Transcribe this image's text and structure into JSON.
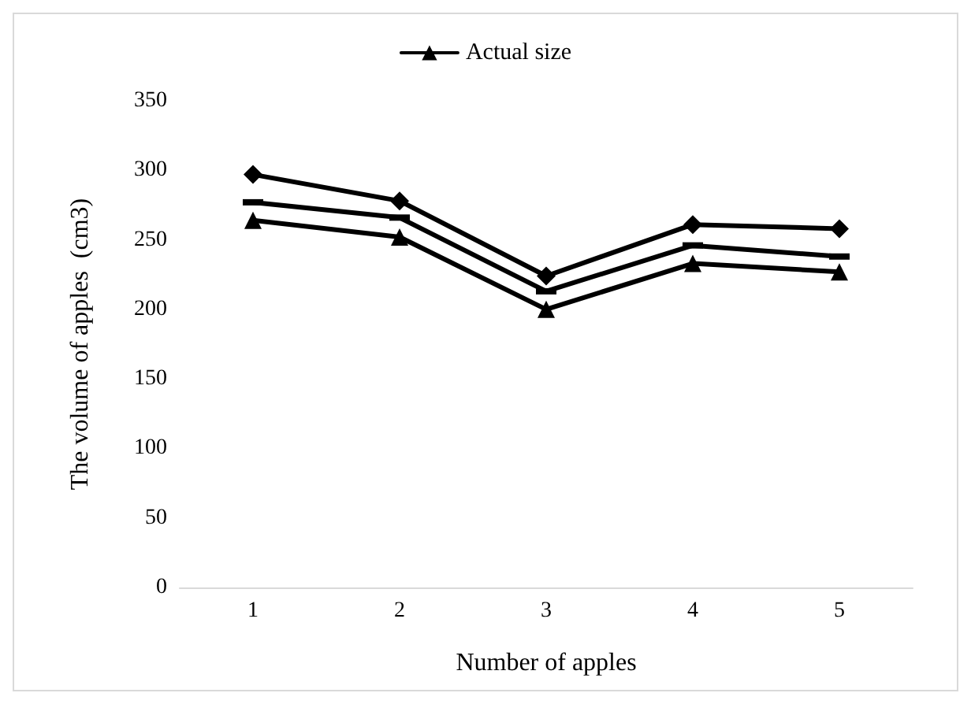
{
  "chart_data": {
    "type": "line",
    "xlabel": "Number of apples",
    "ylabel": "The volume of apples  (cm3)",
    "categories": [
      "1",
      "2",
      "3",
      "4",
      "5"
    ],
    "series": [
      {
        "color": "#000000",
        "marker": "diamond",
        "values": [
          297,
          278,
          224,
          261,
          258
        ]
      },
      {
        "color": "#000000",
        "marker": "square",
        "values": [
          277,
          266,
          213,
          246,
          238
        ]
      },
      {
        "name": "Actual size",
        "color": "#000000",
        "marker": "triangle",
        "values": [
          264,
          252,
          200,
          233,
          227
        ]
      }
    ],
    "ylim": [
      0,
      350
    ],
    "yticks": [
      0,
      50,
      100,
      150,
      200,
      250,
      300,
      350
    ],
    "grid": false,
    "legend": "top"
  }
}
